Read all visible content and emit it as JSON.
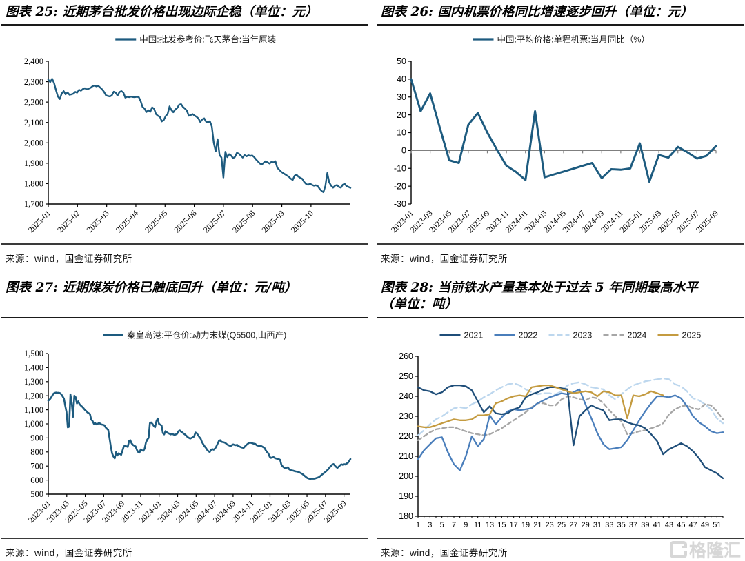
{
  "page": {
    "source_label": "来源：wind，国金证券研究所",
    "watermark_text": "格隆汇",
    "accent_color": "#1d5b7f"
  },
  "chart_data": [
    {
      "type": "line",
      "title": "图表 25: 近期茅台批发价格出现边际企稳（单位：元）",
      "ylim": [
        1700,
        2400
      ],
      "ytick_step": 100,
      "y_tick_labels": [
        "1,700",
        "1,800",
        "1,900",
        "2,000",
        "2,100",
        "2,200",
        "2,300",
        "2,400"
      ],
      "x_tick_labels": [
        "2025-01",
        "2025-02",
        "2025-03",
        "2025-04",
        "2025-05",
        "2025-06",
        "2025-07",
        "2025-08",
        "2025-09",
        "2025-10"
      ],
      "grid": false,
      "legend_position": "top-center",
      "series": [
        {
          "name": "中国:批发参考价:飞天茅台:当年原装",
          "color": "#1d5b7f",
          "values": [
            2310,
            2298,
            2314,
            2293,
            2258,
            2228,
            2215,
            2242,
            2254,
            2238,
            2247,
            2236,
            2238,
            2241,
            2250,
            2246,
            2260,
            2256,
            2264,
            2268,
            2262,
            2266,
            2270,
            2278,
            2281,
            2277,
            2280,
            2271,
            2262,
            2250,
            2233,
            2230,
            2228,
            2233,
            2251,
            2247,
            2232,
            2249,
            2254,
            2247,
            2222,
            2226,
            2224,
            2227,
            2225,
            2224,
            2226,
            2225,
            2205,
            2176,
            2168,
            2151,
            2160,
            2152,
            2174,
            2167,
            2141,
            2133,
            2128,
            2105,
            2112,
            2131,
            2142,
            2179,
            2161,
            2150,
            2164,
            2171,
            2187,
            2190,
            2176,
            2168,
            2158,
            2133,
            2136,
            2141,
            2134,
            2128,
            2120,
            2102,
            2115,
            2120,
            2104,
            2100,
            2106,
            2080,
            2000,
            1958,
            2018,
            1940,
            1928,
            1830,
            1956,
            1930,
            1944,
            1938,
            1925,
            1931,
            1951,
            1947,
            1938,
            1928,
            1940,
            1934,
            1939,
            1936,
            1938,
            1930,
            1918,
            1908,
            1898,
            1894,
            1903,
            1910,
            1904,
            1898,
            1907,
            1904,
            1910,
            1878,
            1868,
            1858,
            1852,
            1846,
            1840,
            1834,
            1824,
            1818,
            1839,
            1844,
            1834,
            1828,
            1823,
            1808,
            1798,
            1794,
            1800,
            1794,
            1790,
            1792,
            1788,
            1774,
            1764,
            1758,
            1789,
            1852,
            1806,
            1790,
            1780,
            1790,
            1793,
            1784,
            1780,
            1794,
            1799,
            1788,
            1784,
            1779
          ]
        }
      ]
    },
    {
      "type": "line",
      "title": "图表 26: 国内机票价格同比增速逐步回升（单位：元）",
      "ylim": [
        -30,
        50
      ],
      "ytick_step": 10,
      "y_tick_labels": [
        "-30",
        "-20",
        "-10",
        "0",
        "10",
        "20",
        "30",
        "40",
        "50"
      ],
      "x_tick_labels": [
        "2023-01",
        "2023-03",
        "2023-05",
        "2023-07",
        "2023-09",
        "2023-11",
        "2024-01",
        "2024-03",
        "2024-05",
        "2024-07",
        "2024-09",
        "2024-11",
        "2025-01",
        "2025-03",
        "2025-05",
        "2025-07",
        "2025-09"
      ],
      "grid": false,
      "zero_axis": true,
      "legend_position": "top-center",
      "series": [
        {
          "name": "中国:平均价格:单程机票:当月同比（%）",
          "color": "#1d5b7f",
          "values": [
            40,
            22,
            32,
            13,
            -5.5,
            -7,
            14.5,
            21,
            10,
            0.5,
            -8.5,
            -12,
            -16.5,
            22,
            -15,
            -13.4,
            -11.8,
            -10.2,
            -8.6,
            -7,
            -15.5,
            -10.5,
            -10.8,
            -10,
            4,
            -17.5,
            -2.5,
            -4,
            2,
            -1,
            -4.5,
            -3,
            2.5
          ]
        }
      ]
    },
    {
      "type": "line",
      "title": "图表 27: 近期煤炭价格已触底回升（单位：元/吨）",
      "ylim": [
        500,
        1500
      ],
      "ytick_step": 100,
      "y_tick_labels": [
        "500",
        "600",
        "700",
        "800",
        "900",
        "1,000",
        "1,100",
        "1,200",
        "1,300",
        "1,400",
        "1,500"
      ],
      "x_tick_labels": [
        "2023-01",
        "2023-03",
        "2023-05",
        "2023-07",
        "2023-09",
        "2023-11",
        "2024-01",
        "2024-03",
        "2024-05",
        "2024-07",
        "2024-09",
        "2024-11",
        "2025-01",
        "2025-03",
        "2025-05",
        "2025-07",
        "2025-09"
      ],
      "grid": false,
      "legend_position": "top-center",
      "series": [
        {
          "name": "秦皇岛港:平仓价:动力末煤(Q5500,山西产)",
          "color": "#1d5b7f",
          "values": [
            1165,
            1172,
            1185,
            1200,
            1215,
            1220,
            1222,
            1220,
            1221,
            1218,
            1210,
            1195,
            1180,
            1130,
            1085,
            975,
            980,
            1210,
            1150,
            1050,
            1200,
            1190,
            1145,
            1160,
            1140,
            1130,
            1122,
            1112,
            1100,
            1092,
            1082,
            1076,
            1070,
            1030,
            1020,
            1000,
            1005,
            996,
            1000,
            1008,
            1000,
            995,
            993,
            990,
            975,
            965,
            958,
            900,
            840,
            790,
            768,
            755,
            798,
            775,
            790,
            786,
            780,
            810,
            840,
            845,
            840,
            836,
            878,
            884,
            862,
            850,
            845,
            840,
            815,
            800,
            795,
            818,
            812,
            808,
            824,
            868,
            888,
            900,
            1005,
            1010,
            1000,
            986,
            976,
            1018,
            1038,
            1000,
            994,
            988,
            935,
            925,
            948,
            940,
            934,
            930,
            925,
            929,
            925,
            921,
            925,
            930,
            948,
            953,
            944,
            938,
            930,
            924,
            916,
            906,
            900,
            895,
            900,
            905,
            910,
            938,
            934,
            920,
            906,
            895,
            870,
            855,
            840,
            830,
            815,
            805,
            800,
            815,
            820,
            816,
            824,
            838,
            858,
            878,
            884,
            872,
            870,
            868,
            864,
            856,
            850,
            846,
            841,
            849,
            854,
            850,
            848,
            851,
            841,
            838,
            834,
            831,
            829,
            839,
            849,
            857,
            864,
            867,
            864,
            861,
            859,
            857,
            848,
            845,
            843,
            845,
            840,
            835,
            829,
            812,
            799,
            789,
            766,
            758,
            761,
            764,
            757,
            754,
            751,
            749,
            744,
            710,
            697,
            689,
            684,
            688,
            691,
            677,
            671,
            669,
            667,
            664,
            662,
            661,
            658,
            654,
            649,
            644,
            637,
            629,
            621,
            614,
            611,
            609,
            610,
            611,
            610,
            612,
            615,
            618,
            622,
            630,
            638,
            645,
            652,
            660,
            668,
            678,
            690,
            700,
            710,
            714,
            704,
            694,
            687,
            695,
            705,
            712,
            709,
            714,
            711,
            717,
            722,
            735,
            750
          ]
        }
      ]
    },
    {
      "type": "line",
      "title": "图表 28: 当前铁水产量基本处于过去 5 年同期最高水平（单位：吨）",
      "ylim": [
        180,
        260
      ],
      "ytick_step": 10,
      "y_tick_labels": [
        "180",
        "190",
        "200",
        "210",
        "220",
        "230",
        "240",
        "250",
        "260"
      ],
      "x_tick_labels": [
        "1",
        "3",
        "5",
        "7",
        "9",
        "11",
        "13",
        "15",
        "17",
        "19",
        "21",
        "23",
        "25",
        "27",
        "29",
        "31",
        "33",
        "35",
        "37",
        "39",
        "41",
        "43",
        "45",
        "47",
        "49",
        "51"
      ],
      "x_axis_weeks": 52,
      "grid": false,
      "legend_position": "top-center",
      "draw_order": [
        2,
        3,
        1,
        0,
        4
      ],
      "series": [
        {
          "name": "2021",
          "color": "#1f4e79",
          "values": [
            244.5,
            243,
            242.5,
            241,
            242,
            244.5,
            245.5,
            245.5,
            245,
            243,
            237.5,
            232,
            235,
            231.5,
            231,
            231.5,
            233.5,
            234.5,
            239.5,
            241,
            242,
            243.5,
            244.5,
            244.5,
            244,
            243.5,
            215.5,
            230,
            233,
            235.5,
            234,
            233,
            228,
            228.5,
            228.5,
            227,
            226,
            225.5,
            224,
            221,
            217.5,
            211,
            213.5,
            215,
            216.5,
            215,
            212.5,
            209,
            204.5,
            203,
            201.5,
            199
          ]
        },
        {
          "name": "2022",
          "color": "#4a7ebb",
          "values": [
            208.5,
            213,
            216,
            219,
            219.5,
            212,
            206,
            203,
            210,
            220,
            215,
            218.5,
            230.5,
            226,
            229.5,
            232.5,
            233.5,
            233,
            233.5,
            234,
            236.5,
            238,
            239.5,
            240.5,
            241.5,
            241,
            242,
            243.5,
            236,
            229,
            221.5,
            216,
            213.5,
            214,
            214.5,
            218,
            223,
            228,
            232.5,
            236.5,
            240,
            240,
            239.5,
            240.5,
            239,
            235,
            230,
            227,
            225,
            222.5,
            221.5,
            222
          ]
        },
        {
          "name": "2023",
          "color": "#bdd7ee",
          "dash": "10 5",
          "values": [
            220.5,
            223,
            226,
            228.5,
            230,
            232,
            234,
            234.5,
            234,
            236,
            237.5,
            239.5,
            241,
            243,
            244.5,
            246,
            246.5,
            245.5,
            243.5,
            242,
            241,
            241.5,
            241.5,
            241,
            242.5,
            245.5,
            246.5,
            247,
            246,
            244.5,
            244,
            243.5,
            240.5,
            238.5,
            241,
            243.5,
            245.5,
            246.5,
            247.5,
            248,
            248.5,
            249,
            248.5,
            246,
            245,
            242.5,
            239,
            238,
            236,
            233.5,
            229,
            226.5
          ]
        },
        {
          "name": "2024",
          "color": "#a6a6a6",
          "dash": "6 4",
          "values": [
            218,
            220,
            222,
            223.5,
            224,
            224.5,
            224.5,
            223.5,
            222.5,
            221.5,
            221,
            220.5,
            221,
            222.5,
            224,
            226,
            228,
            230,
            232,
            234.5,
            236.5,
            236.5,
            235.5,
            235.5,
            238.5,
            240,
            239.5,
            238.5,
            238,
            239.5,
            239,
            236.5,
            233,
            230,
            227.5,
            221,
            221.5,
            222.5,
            223,
            224,
            225,
            226.5,
            231,
            233.5,
            235,
            235.5,
            234,
            233.5,
            236,
            235.5,
            232.5,
            228.5
          ]
        },
        {
          "name": "2025",
          "color": "#c49b40",
          "values": [
            225,
            224.5,
            224.5,
            225.5,
            226.5,
            227.5,
            228.5,
            228,
            228,
            228.5,
            230.5,
            230.5,
            231,
            236.5,
            237.5,
            239,
            240,
            240.5,
            240,
            244.5,
            245,
            245.5,
            245.5,
            244.5,
            243.5,
            242.5,
            241.5,
            242,
            242.5,
            242,
            240,
            242.5,
            242,
            240.5,
            240.5,
            229,
            240.5,
            240,
            241,
            242.5,
            241.5,
            240.5
          ]
        }
      ]
    }
  ]
}
